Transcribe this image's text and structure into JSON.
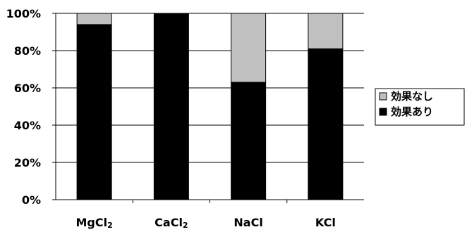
{
  "chart_data": {
    "type": "bar",
    "stacked": true,
    "percent": true,
    "categories": [
      "MgCl2",
      "CaCl2",
      "NaCl",
      "KCl"
    ],
    "category_labels": [
      {
        "base": "MgCl",
        "sub": "2"
      },
      {
        "base": "CaCl",
        "sub": "2"
      },
      {
        "base": "NaCl",
        "sub": ""
      },
      {
        "base": "KCl",
        "sub": ""
      }
    ],
    "series": [
      {
        "name": "効果あり",
        "values": [
          94,
          100,
          63,
          81
        ],
        "color": "#000000"
      },
      {
        "name": "効果なし",
        "values": [
          6,
          0,
          37,
          19
        ],
        "color": "#c0c0c0"
      }
    ],
    "ylim": [
      0,
      100
    ],
    "yticks": [
      "0%",
      "20%",
      "40%",
      "60%",
      "80%",
      "100%"
    ],
    "grid": true,
    "legend_position": "right",
    "legend_order": [
      "効果なし",
      "効果あり"
    ]
  }
}
